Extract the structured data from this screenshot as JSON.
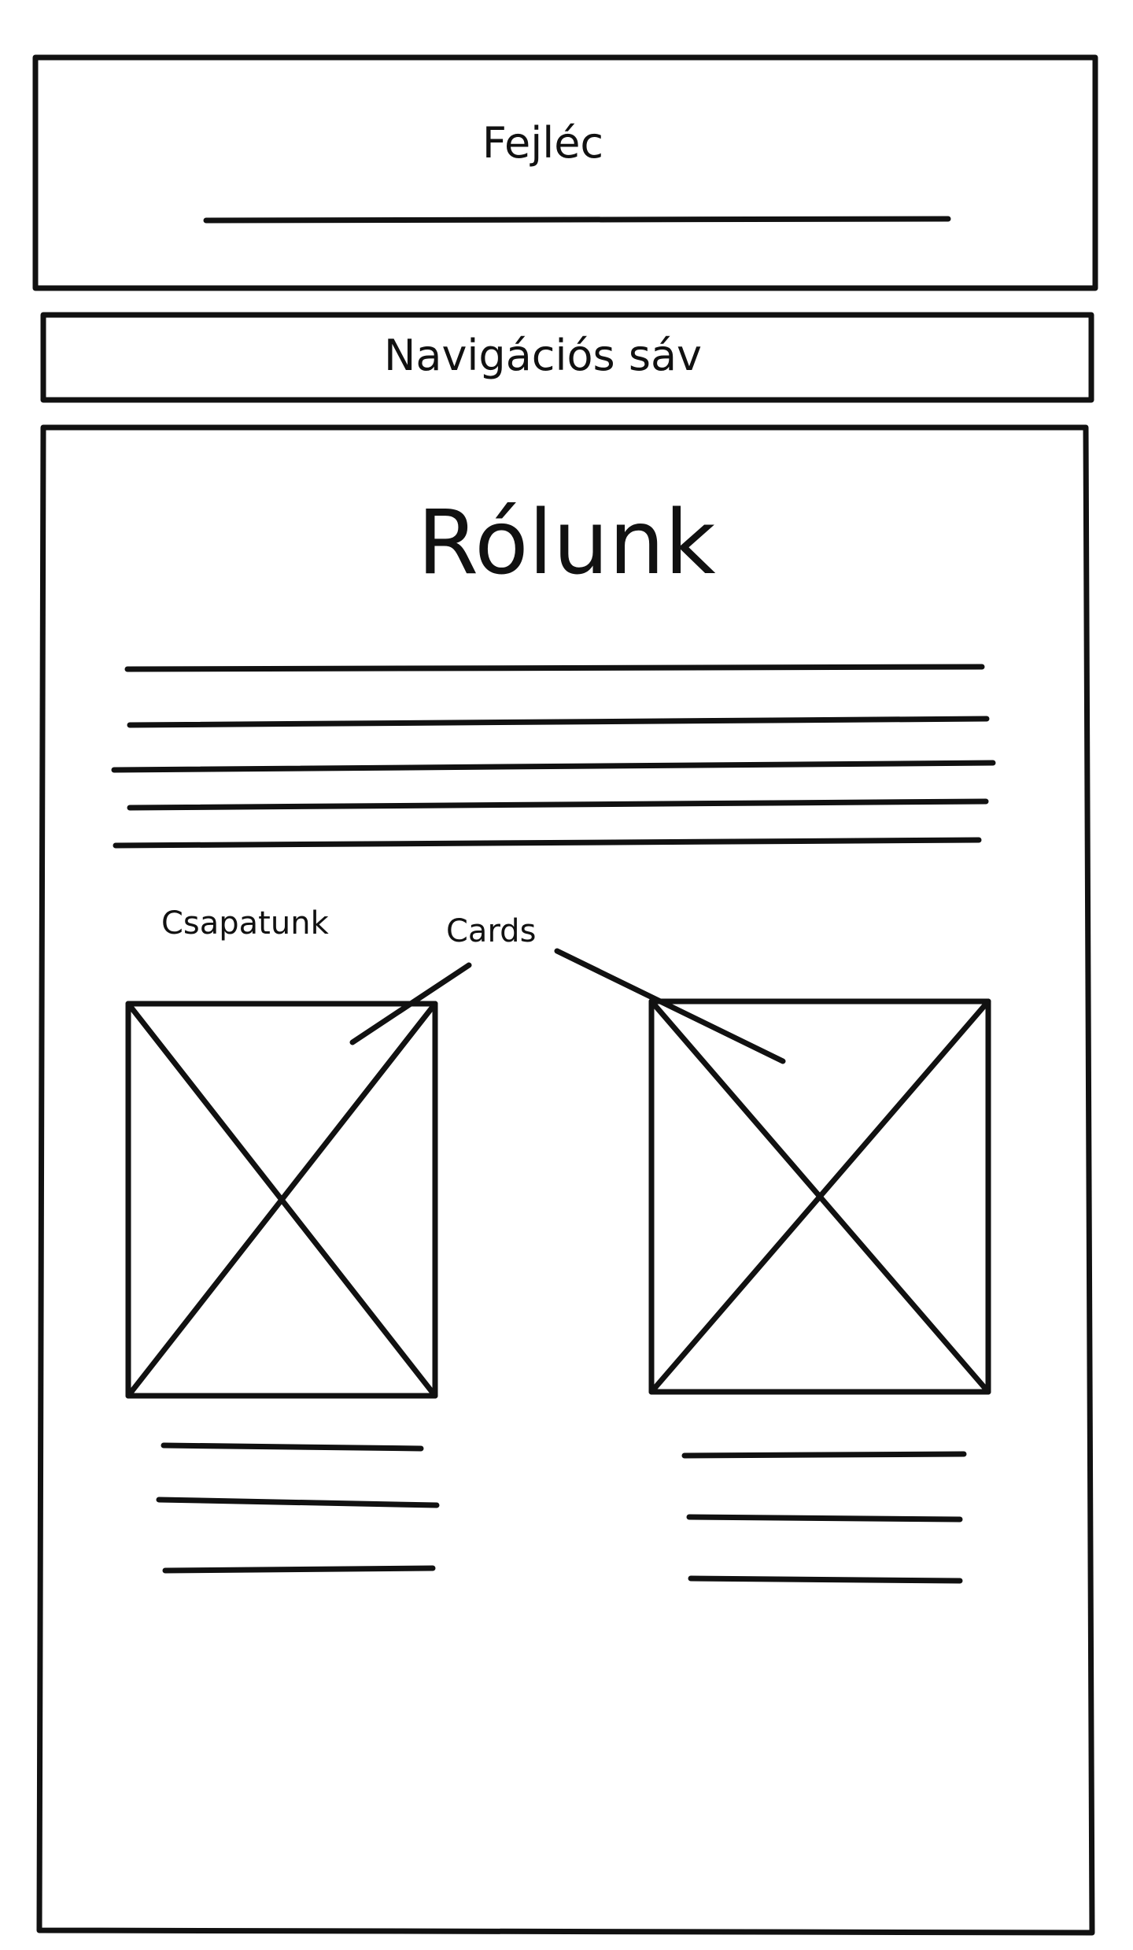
{
  "header": {
    "title": "Fejléc"
  },
  "navigation": {
    "label": "Navigációs sáv"
  },
  "content": {
    "title": "Rólunk",
    "team_label": "Csapatunk",
    "cards_label": "Cards"
  },
  "colors": {
    "stroke": "#111111",
    "background": "#ffffff"
  },
  "icons": {
    "image_placeholder": "image-placeholder-icon"
  }
}
